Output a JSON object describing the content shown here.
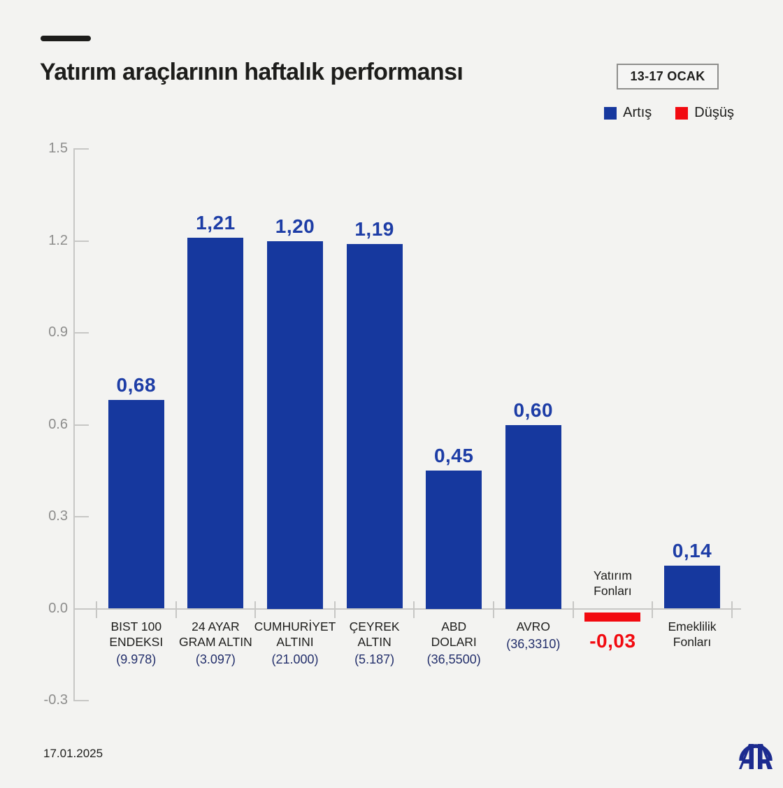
{
  "page": {
    "background": "#f3f3f1"
  },
  "header": {
    "title": "Yatırım araçlarının haftalık performansı",
    "date_badge": "13-17 OCAK"
  },
  "legend": {
    "increase_label": "Artış",
    "decrease_label": "Düşüş",
    "increase_color": "#16389e",
    "decrease_color": "#f20a10"
  },
  "footer": {
    "date": "17.01.2025",
    "logo": "AA"
  },
  "chart_data": {
    "type": "bar",
    "title": "Yatırım araçlarının haftalık performansı",
    "categories": [
      "BIST 100\nENDEKSI",
      "24 AYAR\nGRAM ALTIN",
      "CUMHURİYET\nALTINI",
      "ÇEYREK\nALTIN",
      "ABD\nDOLARI",
      "AVRO",
      "Yatırım\nFonları",
      "Emeklilik\nFonları"
    ],
    "sublabels": [
      "(9.978)",
      "(3.097)",
      "(21.000)",
      "(5.187)",
      "(36,5500)",
      "(36,3310)",
      "",
      ""
    ],
    "values": [
      0.68,
      1.21,
      1.2,
      1.19,
      0.45,
      0.6,
      -0.03,
      0.14
    ],
    "value_labels": [
      "0,68",
      "1,21",
      "1,20",
      "1,19",
      "0,45",
      "0,60",
      "-0,03",
      "0,14"
    ],
    "ytick_labels": [
      "1.5",
      "1.2",
      "0.9",
      "0.6",
      "0.3",
      "0.0",
      "-0.3"
    ],
    "ytick_values": [
      1.5,
      1.2,
      0.9,
      0.6,
      0.3,
      0.0,
      -0.3
    ],
    "ylim": [
      -0.3,
      1.5
    ],
    "grid": false,
    "legend_position": "top-right",
    "positive_color": "#16389e",
    "negative_color": "#f20a10",
    "value_label_color_positive": "#1d3da6",
    "value_label_color_negative": "#f20a10",
    "axis_color": "#c7c7c5",
    "ytick_label_color": "#8d8d8c"
  }
}
